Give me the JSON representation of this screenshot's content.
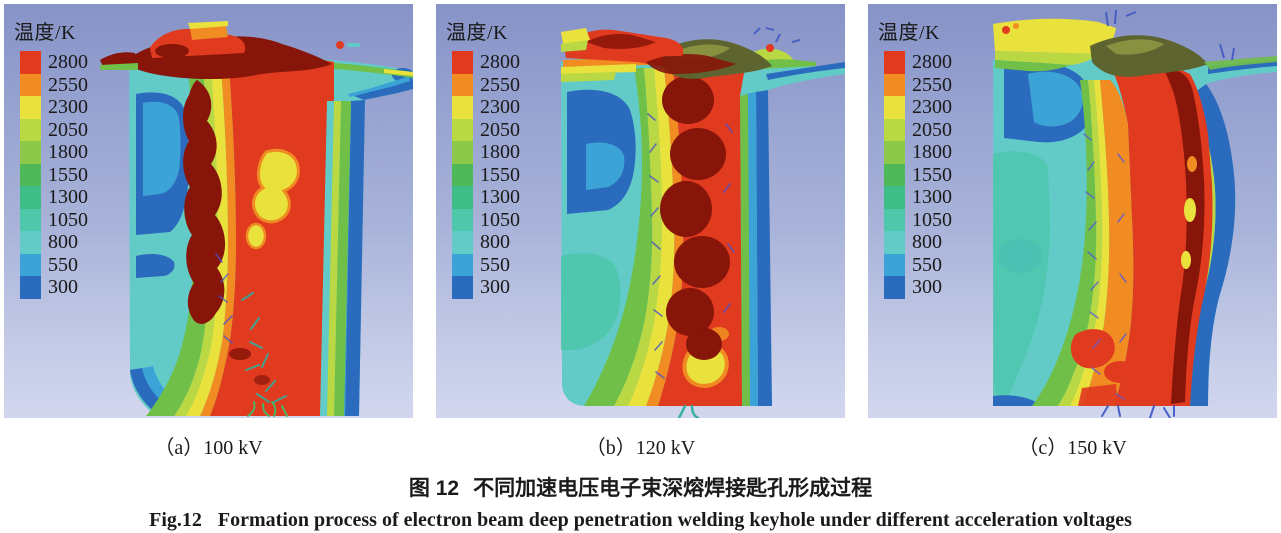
{
  "figure": {
    "legend": {
      "title": "温度/K",
      "values": [
        "2800",
        "2550",
        "2300",
        "2050",
        "1800",
        "1550",
        "1300",
        "1050",
        "800",
        "550",
        "300"
      ],
      "colors": [
        "#e03a1f",
        "#f08c21",
        "#e9e23c",
        "#b9d843",
        "#8cc94a",
        "#4fb95a",
        "#3fbd86",
        "#4ec7ab",
        "#62cbc8",
        "#3ba3d6",
        "#2b6bbd"
      ]
    },
    "panels": [
      {
        "caption": "（a）100 kV"
      },
      {
        "caption": "（b）120 kV"
      },
      {
        "caption": "（c）150 kV"
      }
    ],
    "caption_zh": {
      "prefix": "图 12",
      "text": "不同加速电压电子束深熔焊接匙孔形成过程"
    },
    "caption_en": {
      "prefix": "Fig.12",
      "text": "Formation process of electron beam deep penetration welding keyhole under different acceleration voltages"
    }
  }
}
